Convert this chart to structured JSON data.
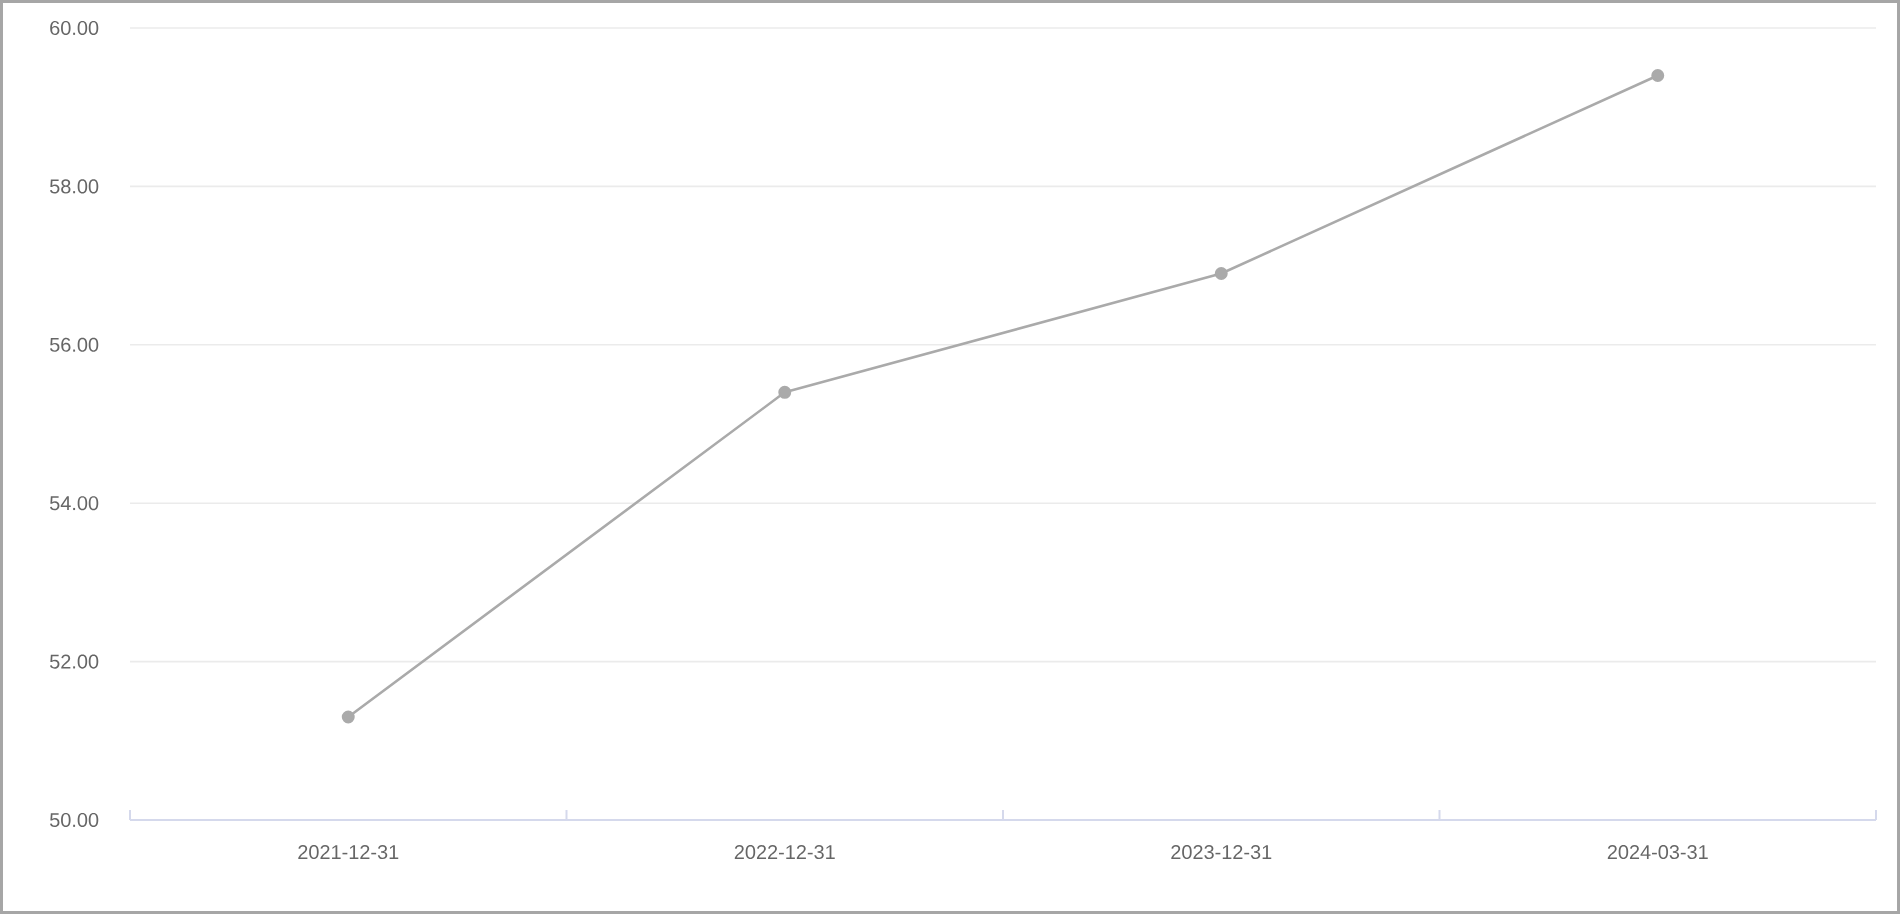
{
  "chart_data": {
    "type": "line",
    "categories": [
      "2021-12-31",
      "2022-12-31",
      "2023-12-31",
      "2024-03-31"
    ],
    "series": [
      {
        "color": "#aaaaaa",
        "values": [
          51.3,
          55.4,
          56.9,
          59.4
        ]
      }
    ],
    "ylim": [
      50,
      60
    ],
    "yticks": [
      {
        "value": 50,
        "label": "50.00"
      },
      {
        "value": 52,
        "label": "52.00"
      },
      {
        "value": 54,
        "label": "54.00"
      },
      {
        "value": 56,
        "label": "56.00"
      },
      {
        "value": 58,
        "label": "58.00"
      },
      {
        "value": 60,
        "label": "60.00"
      }
    ],
    "grid": "y",
    "marker": "circle",
    "line_style": "solid"
  }
}
